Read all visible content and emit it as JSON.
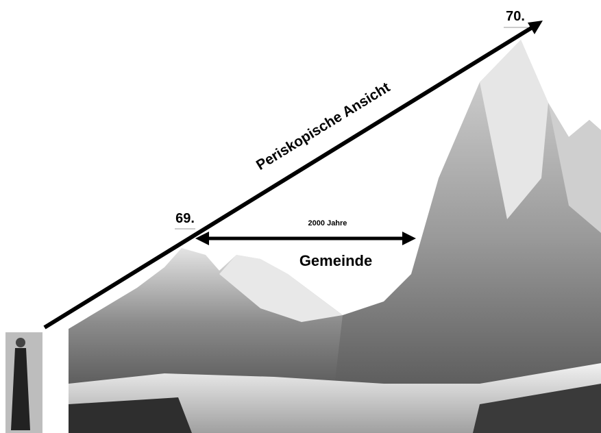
{
  "labels": {
    "start": "69.",
    "end": "70.",
    "arrow": "Periskopische Ansicht",
    "span": "2000 Jahre",
    "span_name": "Gemeinde"
  }
}
